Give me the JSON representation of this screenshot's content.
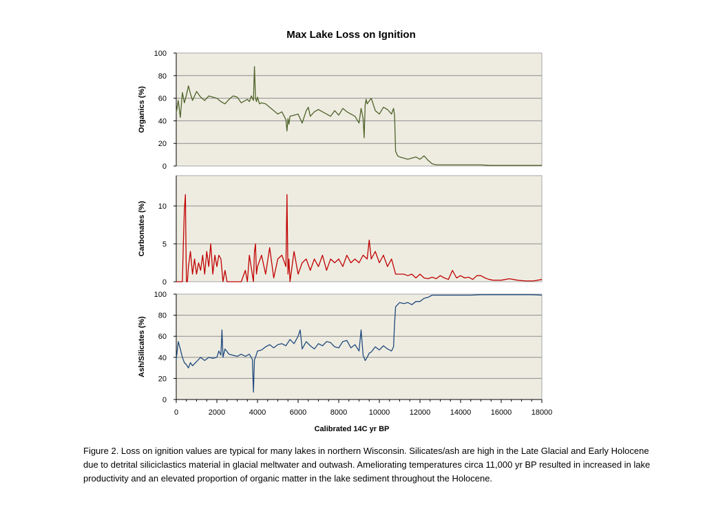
{
  "chart_data": {
    "type": "line",
    "title": "Max Lake Loss on Ignition",
    "xlabel": "Calibrated 14C yr BP",
    "xlim": [
      0,
      18000
    ],
    "x_ticks": [
      "0",
      "2000",
      "4000",
      "6000",
      "8000",
      "10000",
      "12000",
      "14000",
      "16000",
      "18000"
    ],
    "grid": true,
    "panels": [
      {
        "ylabel": "Organics (%)",
        "ylim": [
          0,
          100
        ],
        "y_ticks": [
          "0",
          "20",
          "40",
          "60",
          "80",
          "100"
        ],
        "color": "#4f6228",
        "series": [
          {
            "x": [
              0,
              100,
              200,
              300,
              400,
              500,
              600,
              700,
              800,
              1000,
              1200,
              1400,
              1600,
              1800,
              2000,
              2200,
              2400,
              2600,
              2800,
              3000,
              3200,
              3400,
              3500,
              3600,
              3700,
              3800,
              3850,
              3900,
              3950,
              4000,
              4100,
              4200,
              4400,
              4600,
              4800,
              5000,
              5200,
              5400,
              5450,
              5500,
              5550,
              5600,
              5800,
              6000,
              6200,
              6400,
              6500,
              6600,
              6800,
              7000,
              7200,
              7400,
              7600,
              7800,
              8000,
              8200,
              8400,
              8600,
              8800,
              9000,
              9100,
              9200,
              9250,
              9300,
              9350,
              9400,
              9600,
              9800,
              10000,
              10200,
              10400,
              10600,
              10700,
              10750,
              10800,
              10900,
              11000,
              11200,
              11400,
              11600,
              11800,
              12000,
              12200,
              12400,
              12600,
              12800,
              13000,
              13500,
              14000,
              14500,
              15000,
              15500,
              16000,
              16500,
              17000,
              17500,
              18000
            ],
            "y": [
              47,
              58,
              43,
              65,
              56,
              63,
              71,
              64,
              58,
              66,
              61,
              58,
              62,
              61,
              60,
              57,
              55,
              59,
              62,
              61,
              56,
              58,
              59,
              57,
              62,
              58,
              88,
              60,
              57,
              61,
              55,
              56,
              55,
              52,
              49,
              46,
              48,
              41,
              31,
              42,
              37,
              44,
              45,
              46,
              38,
              49,
              52,
              44,
              48,
              50,
              48,
              46,
              44,
              49,
              45,
              51,
              48,
              46,
              44,
              38,
              51,
              42,
              25,
              54,
              59,
              55,
              60,
              49,
              46,
              52,
              50,
              46,
              51,
              45,
              13,
              9,
              8,
              7,
              6,
              7,
              8,
              6,
              9,
              5,
              2,
              1,
              1,
              1,
              1,
              1,
              1,
              0.5,
              0.5,
              0.5,
              0.5,
              0.5,
              0.5
            ]
          }
        ]
      },
      {
        "ylabel": "Carbonates (%)",
        "ylim": [
          0,
          14
        ],
        "y_ticks": [
          "0",
          "5",
          "10"
        ],
        "color": "#c00000",
        "series": [
          {
            "x": [
              0,
              200,
              300,
              350,
              400,
              450,
              480,
              500,
              550,
              600,
              700,
              800,
              900,
              1000,
              1100,
              1200,
              1300,
              1400,
              1500,
              1600,
              1700,
              1800,
              1900,
              2000,
              2100,
              2200,
              2300,
              2400,
              2500,
              2600,
              2800,
              3000,
              3200,
              3400,
              3500,
              3600,
              3800,
              3850,
              3900,
              3950,
              4000,
              4200,
              4400,
              4600,
              4800,
              5000,
              5200,
              5400,
              5450,
              5500,
              5550,
              5600,
              5800,
              6000,
              6200,
              6400,
              6600,
              6800,
              7000,
              7200,
              7400,
              7600,
              7800,
              8000,
              8200,
              8400,
              8600,
              8800,
              9000,
              9200,
              9400,
              9500,
              9600,
              9800,
              10000,
              10200,
              10400,
              10600,
              10800,
              11000,
              11200,
              11400,
              11600,
              11800,
              12000,
              12200,
              12400,
              12600,
              12800,
              13000,
              13200,
              13400,
              13600,
              13800,
              14000,
              14200,
              14400,
              14600,
              14800,
              15000,
              15200,
              15400,
              15600,
              16000,
              16400,
              16800,
              17200,
              17600,
              18000
            ],
            "y": [
              0,
              0,
              0,
              5,
              9.5,
              11.5,
              4,
              0,
              0,
              2,
              4,
              1,
              3,
              1,
              2.5,
              1.5,
              3.5,
              1,
              4,
              2,
              5,
              1,
              3.5,
              2,
              3.5,
              3,
              0,
              1.5,
              0,
              0,
              0,
              0,
              0,
              1.5,
              0,
              3.5,
              0,
              4,
              5,
              1,
              2,
              3.5,
              1,
              4.5,
              0.5,
              3,
              3.5,
              2,
              11.5,
              1,
              3,
              0,
              4,
              1,
              2.5,
              3,
              1.5,
              3,
              2,
              3.5,
              1.5,
              3,
              2.5,
              3,
              2,
              3.5,
              2.5,
              3,
              2.5,
              3.5,
              3,
              5.5,
              3,
              4,
              2.5,
              3.5,
              2,
              3,
              1,
              1,
              1,
              0.8,
              1,
              0.5,
              1,
              0.5,
              0.4,
              0.6,
              0.4,
              0.8,
              0.5,
              0.3,
              1.5,
              0.5,
              0.8,
              0.5,
              0.6,
              0.3,
              0.8,
              0.8,
              0.5,
              0.3,
              0.2,
              0.2,
              0.4,
              0.2,
              0.1,
              0.1,
              0.3
            ]
          }
        ]
      },
      {
        "ylabel": "Ash/Silicates (%)",
        "ylim": [
          0,
          100
        ],
        "y_ticks": [
          "0",
          "20",
          "40",
          "60",
          "80",
          "100"
        ],
        "color": "#1f497d",
        "series": [
          {
            "x": [
              0,
              100,
              200,
              300,
              400,
              500,
              600,
              700,
              800,
              1000,
              1200,
              1400,
              1600,
              1800,
              2000,
              2100,
              2200,
              2250,
              2300,
              2400,
              2600,
              2800,
              3000,
              3200,
              3400,
              3600,
              3750,
              3800,
              3850,
              3900,
              4000,
              4200,
              4400,
              4600,
              4800,
              5000,
              5200,
              5400,
              5600,
              5800,
              6000,
              6100,
              6200,
              6400,
              6600,
              6800,
              7000,
              7200,
              7400,
              7600,
              7800,
              8000,
              8200,
              8400,
              8600,
              8800,
              9000,
              9100,
              9200,
              9300,
              9400,
              9500,
              9600,
              9800,
              10000,
              10200,
              10400,
              10600,
              10700,
              10750,
              10800,
              10900,
              11000,
              11200,
              11400,
              11600,
              11800,
              12000,
              12200,
              12400,
              12600,
              12800,
              13000,
              13500,
              14000,
              14500,
              15000,
              15500,
              16000,
              16500,
              17000,
              17500,
              18000
            ],
            "y": [
              38,
              55,
              48,
              40,
              35,
              33,
              30,
              35,
              32,
              36,
              40,
              37,
              40,
              39,
              40,
              46,
              42,
              66,
              40,
              48,
              43,
              42,
              41,
              43,
              41,
              43,
              38,
              7,
              38,
              40,
              46,
              47,
              50,
              52,
              49,
              52,
              53,
              51,
              57,
              53,
              60,
              66,
              48,
              55,
              51,
              48,
              53,
              51,
              55,
              54,
              50,
              49,
              55,
              56,
              49,
              52,
              46,
              66,
              42,
              37,
              40,
              44,
              45,
              50,
              47,
              51,
              48,
              46,
              50,
              72,
              88,
              90,
              92,
              91,
              92,
              90,
              93,
              93,
              96,
              97,
              99,
              99,
              99,
              99,
              99,
              99,
              99.5,
              99.5,
              99.5,
              99.5,
              99.5,
              99.5,
              99
            ]
          }
        ]
      }
    ]
  },
  "caption": "Figure 2.   Loss on ignition values are typical for many lakes in northern Wisconsin.  Silicates/ash are high in the Late Glacial and Early Holocene due to detrital siliciclastics material in glacial meltwater and outwash.  Ameliorating temperatures circa 11,000 yr BP resulted in increased in lake productivity and an elevated proportion of organic matter in the lake sediment throughout the Holocene."
}
